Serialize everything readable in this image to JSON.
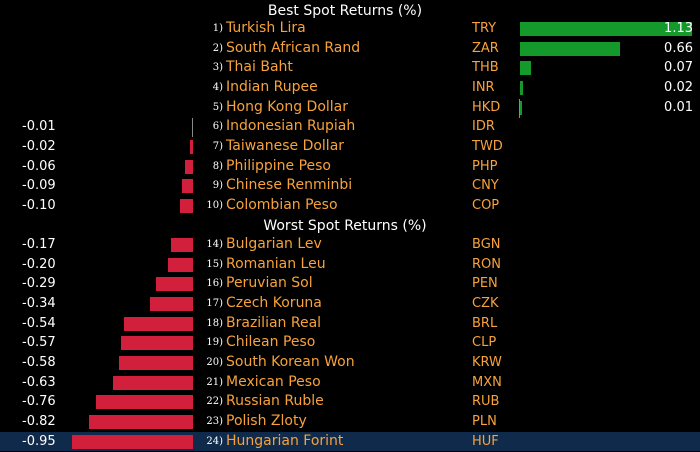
{
  "best_heading": "Best Spot Returns (%)",
  "worst_heading": "Worst Spot Returns (%)",
  "best": [
    {
      "rank": "1)",
      "name": "Turkish Lira",
      "code": "TRY",
      "value": "1.13",
      "v": 1.13
    },
    {
      "rank": "2)",
      "name": "South African Rand",
      "code": "ZAR",
      "value": "0.66",
      "v": 0.66
    },
    {
      "rank": "3)",
      "name": "Thai Baht",
      "code": "THB",
      "value": "0.07",
      "v": 0.07
    },
    {
      "rank": "4)",
      "name": "Indian Rupee",
      "code": "INR",
      "value": "0.02",
      "v": 0.02
    },
    {
      "rank": "5)",
      "name": "Hong Kong Dollar",
      "code": "HKD",
      "value": "0.01",
      "v": 0.01
    },
    {
      "rank": "6)",
      "name": "Indonesian Rupiah",
      "code": "IDR",
      "value": "-0.01",
      "v": -0.01
    },
    {
      "rank": "7)",
      "name": "Taiwanese Dollar",
      "code": "TWD",
      "value": "-0.02",
      "v": -0.02
    },
    {
      "rank": "8)",
      "name": "Philippine Peso",
      "code": "PHP",
      "value": "-0.06",
      "v": -0.06
    },
    {
      "rank": "9)",
      "name": "Chinese Renminbi",
      "code": "CNY",
      "value": "-0.09",
      "v": -0.09
    },
    {
      "rank": "10)",
      "name": "Colombian Peso",
      "code": "COP",
      "value": "-0.10",
      "v": -0.1
    }
  ],
  "worst": [
    {
      "rank": "14)",
      "name": "Bulgarian Lev",
      "code": "BGN",
      "value": "-0.17",
      "v": -0.17
    },
    {
      "rank": "15)",
      "name": "Romanian Leu",
      "code": "RON",
      "value": "-0.20",
      "v": -0.2
    },
    {
      "rank": "16)",
      "name": "Peruvian Sol",
      "code": "PEN",
      "value": "-0.29",
      "v": -0.29
    },
    {
      "rank": "17)",
      "name": "Czech Koruna",
      "code": "CZK",
      "value": "-0.34",
      "v": -0.34
    },
    {
      "rank": "18)",
      "name": "Brazilian Real",
      "code": "BRL",
      "value": "-0.54",
      "v": -0.54
    },
    {
      "rank": "19)",
      "name": "Chilean Peso",
      "code": "CLP",
      "value": "-0.57",
      "v": -0.57
    },
    {
      "rank": "20)",
      "name": "South Korean Won",
      "code": "KRW",
      "value": "-0.58",
      "v": -0.58
    },
    {
      "rank": "21)",
      "name": "Mexican Peso",
      "code": "MXN",
      "value": "-0.63",
      "v": -0.63
    },
    {
      "rank": "22)",
      "name": "Russian Ruble",
      "code": "RUB",
      "value": "-0.76",
      "v": -0.76
    },
    {
      "rank": "23)",
      "name": "Polish Zloty",
      "code": "PLN",
      "value": "-0.82",
      "v": -0.82
    },
    {
      "rank": "24)",
      "name": "Hungarian Forint",
      "code": "HUF",
      "value": "-0.95",
      "v": -0.95
    }
  ],
  "selected_code": "HUF",
  "colors": {
    "positive_bar": "#139a2a",
    "negative_bar": "#d21f3c",
    "name_text": "#f7a23b",
    "highlight_row": "#0f2a4a"
  }
}
